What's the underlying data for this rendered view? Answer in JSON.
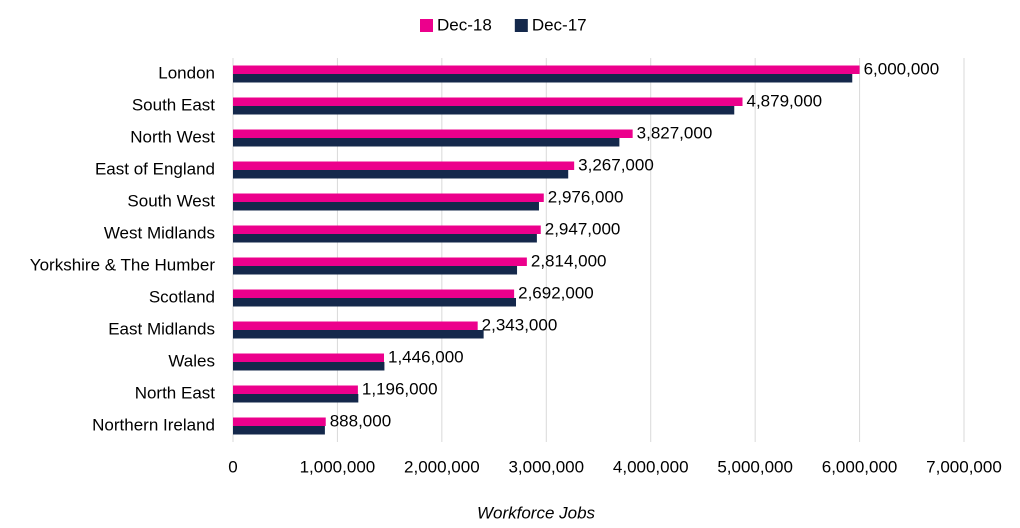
{
  "chart_data": {
    "type": "bar",
    "orientation": "horizontal",
    "x_label": "Workforce Jobs",
    "categories": [
      "London",
      "South East",
      "North West",
      "East of England",
      "South West",
      "West Midlands",
      "Yorkshire & The Humber",
      "Scotland",
      "East Midlands",
      "Wales",
      "North East",
      "Northern Ireland"
    ],
    "series": [
      {
        "name": "Dec-18",
        "color": "#ec008c",
        "values": [
          6000000,
          4879000,
          3827000,
          3267000,
          2976000,
          2947000,
          2814000,
          2692000,
          2343000,
          1446000,
          1196000,
          888000
        ],
        "value_labels": [
          "6,000,000",
          "4,879,000",
          "3,827,000",
          "3,267,000",
          "2,976,000",
          "2,947,000",
          "2,814,000",
          "2,692,000",
          "2,343,000",
          "1,446,000",
          "1,196,000",
          "888,000"
        ]
      },
      {
        "name": "Dec-17",
        "color": "#14284b",
        "values": [
          5930000,
          4800000,
          3700000,
          3210000,
          2930000,
          2910000,
          2720000,
          2710000,
          2400000,
          1450000,
          1200000,
          880000
        ]
      }
    ],
    "xlim": [
      0,
      7000000
    ],
    "xticks": [
      0,
      {
        "value": 1000000,
        "label": "1,000,000"
      },
      {
        "value": 2000000,
        "label": "2,000,000"
      },
      {
        "value": 3000000,
        "label": "3,000,000"
      },
      {
        "value": 4000000,
        "label": "4,000,000"
      },
      {
        "value": 5000000,
        "label": "5,000,000"
      },
      {
        "value": 6000000,
        "label": "6,000,000"
      },
      {
        "value": 7000000,
        "label": "7,000,000"
      }
    ],
    "grid": true,
    "legend": "top"
  }
}
